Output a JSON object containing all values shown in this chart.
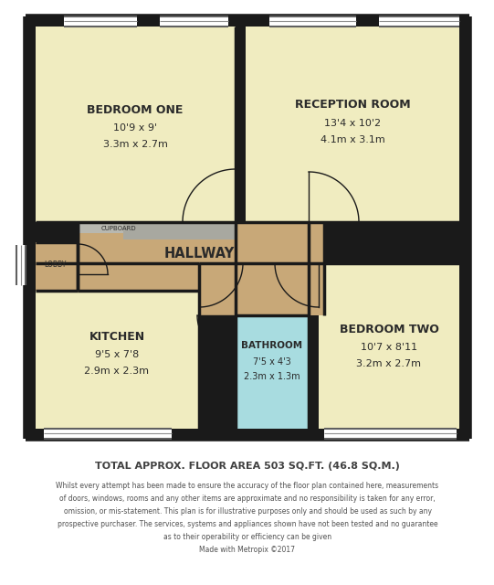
{
  "bg_color": "#ffffff",
  "outer_wall_color": "#1a1a1a",
  "room_yellow": "#f0ecc0",
  "room_tan": "#c8a878",
  "room_blue": "#a8dce0",
  "room_gray": "#b8b8b0",
  "title_text": "TOTAL APPROX. FLOOR AREA 503 SQ.FT. (46.8 SQ.M.)",
  "disclaimer_lines": [
    "Whilst every attempt has been made to ensure the accuracy of the floor plan contained here, measurements",
    "of doors, windows, rooms and any other items are approximate and no responsibility is taken for any error,",
    "omission, or mis-statement. This plan is for illustrative purposes only and should be used as such by any",
    "prospective purchaser. The services, systems and appliances shown have not been tested and no guarantee",
    "as to their operability or efficiency can be given",
    "Made with Metropix ©2017"
  ]
}
